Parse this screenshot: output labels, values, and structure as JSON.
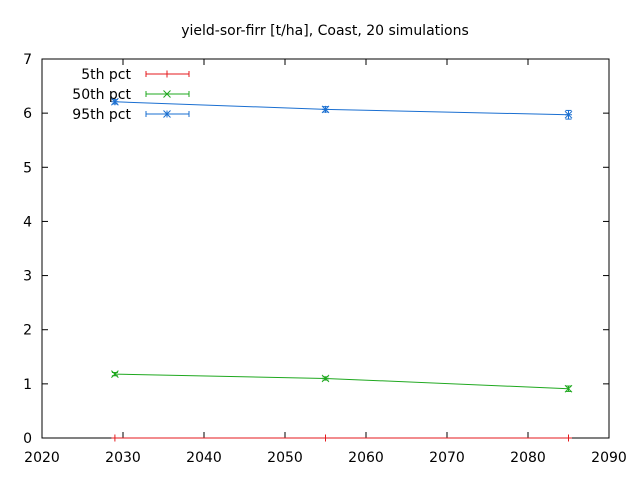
{
  "chart_data": {
    "type": "line",
    "title": "yield-sor-firr [t/ha], Coast, 20 simulations",
    "xlabel": "",
    "ylabel": "",
    "xlim": [
      2020,
      2090
    ],
    "ylim": [
      0,
      7
    ],
    "xticks": [
      2020,
      2030,
      2040,
      2050,
      2060,
      2070,
      2080,
      2090
    ],
    "yticks": [
      0,
      1,
      2,
      3,
      4,
      5,
      6,
      7
    ],
    "grid": false,
    "legend_position": "top-left",
    "series": [
      {
        "name": "5th pct",
        "color": "#e41a1c",
        "marker": "plus",
        "points": [
          {
            "x": 2029,
            "y": 0.0,
            "err": 0.0
          },
          {
            "x": 2055,
            "y": 0.0,
            "err": 0.0
          },
          {
            "x": 2085,
            "y": 0.0,
            "err": 0.0
          }
        ]
      },
      {
        "name": "50th pct",
        "color": "#1fa81f",
        "marker": "cross",
        "points": [
          {
            "x": 2029,
            "y": 1.18,
            "err": 0.03
          },
          {
            "x": 2055,
            "y": 1.1,
            "err": 0.03
          },
          {
            "x": 2085,
            "y": 0.91,
            "err": 0.05
          }
        ]
      },
      {
        "name": "95th pct",
        "color": "#1a6fd1",
        "marker": "star",
        "points": [
          {
            "x": 2029,
            "y": 6.21,
            "err": 0.04
          },
          {
            "x": 2055,
            "y": 6.07,
            "err": 0.05
          },
          {
            "x": 2085,
            "y": 5.97,
            "err": 0.08
          }
        ]
      }
    ]
  }
}
